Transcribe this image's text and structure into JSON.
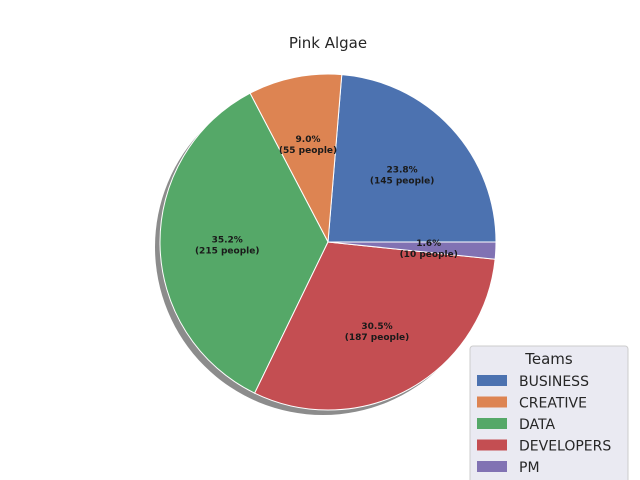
{
  "chart_data": {
    "type": "pie",
    "title": "Pink Algae",
    "categories": [
      "BUSINESS",
      "CREATIVE",
      "DATA",
      "DEVELOPERS",
      "PM"
    ],
    "values": [
      145,
      55,
      215,
      187,
      10
    ],
    "percent_labels": [
      "23.8%",
      "9.0%",
      "35.2%",
      "30.5%",
      "1.6%"
    ],
    "count_labels": [
      "(145 people)",
      "(55 people)",
      "(215 people)",
      "(187 people)",
      "(10 people)"
    ],
    "colors": [
      "#4c72b0",
      "#dd8452",
      "#55a868",
      "#c44e52",
      "#8172b3"
    ],
    "start_angle_deg": 0,
    "direction": "counterclockwise",
    "shadow": true,
    "legend": {
      "title": "Teams",
      "placement": "lower-right"
    }
  }
}
